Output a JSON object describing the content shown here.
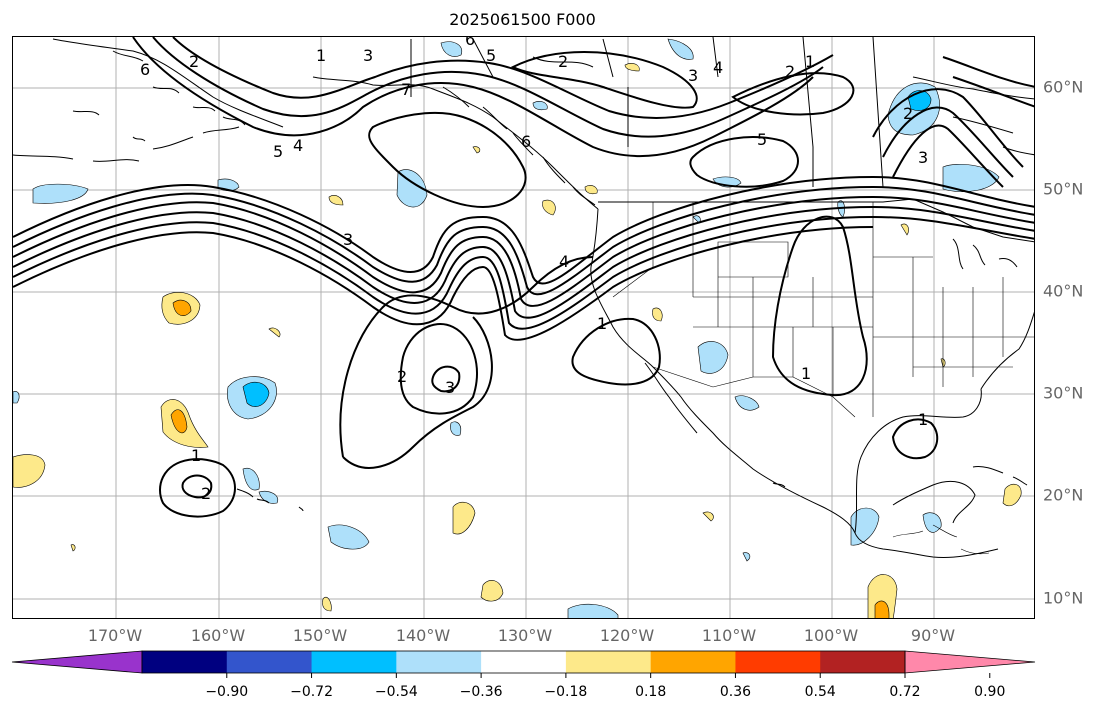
{
  "title": "2025061500 F000",
  "lon_labels": [
    "170°W",
    "160°W",
    "150°W",
    "140°W",
    "130°W",
    "120°W",
    "110°W",
    "100°W",
    "90°W"
  ],
  "lat_labels": [
    "60°N",
    "50°N",
    "40°N",
    "30°N",
    "20°N",
    "10°N"
  ],
  "contour_labels": [
    "1",
    "2",
    "3",
    "4",
    "5",
    "6",
    "7"
  ],
  "colorbar": {
    "ticks": [
      "−0.90",
      "−0.72",
      "−0.54",
      "−0.36",
      "−0.18",
      "0.18",
      "0.36",
      "0.54",
      "0.72",
      "0.90"
    ],
    "colors": [
      "#9933cc",
      "#000080",
      "#3355cc",
      "#00bfff",
      "#aee0fa",
      "#ffffff",
      "#fde98a",
      "#ffa500",
      "#ff3c00",
      "#b22222",
      "#ff88aa"
    ]
  },
  "colors": {
    "land_line": "#000000",
    "grid": "#b0b0b0",
    "label_gray": "#666666",
    "light_blue": "#aee0fa",
    "blue": "#00bfff",
    "yellow": "#fde98a",
    "orange": "#ffa500"
  }
}
